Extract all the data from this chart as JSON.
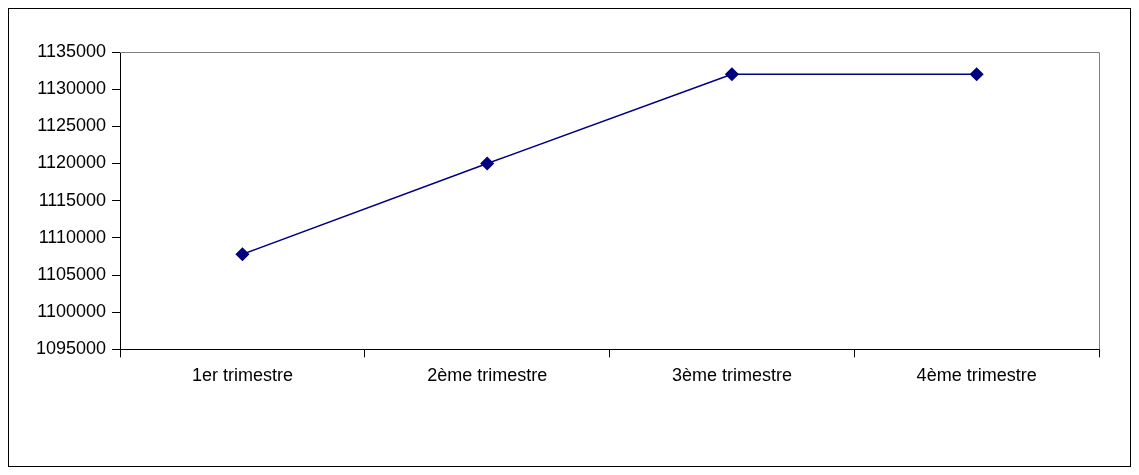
{
  "chart_data": {
    "type": "line",
    "categories": [
      "1er trimestre",
      "2ème trimestre",
      "3ème trimestre",
      "4ème trimestre"
    ],
    "series": [
      {
        "color": "#000080",
        "values": [
          1107800,
          1120000,
          1132000,
          1132000
        ]
      }
    ],
    "ylim": [
      1095000,
      1135000
    ],
    "yticks": [
      1095000,
      1100000,
      1105000,
      1110000,
      1115000,
      1120000,
      1125000,
      1130000,
      1135000
    ],
    "grid": false,
    "legend": false,
    "marker": "diamond",
    "line_style": "solid"
  }
}
